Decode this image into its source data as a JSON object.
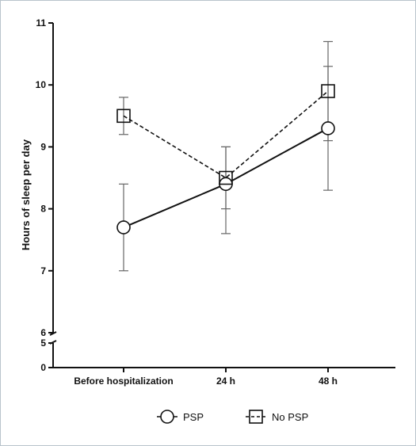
{
  "chart_data": {
    "type": "line",
    "ylabel": "Hours of sleep per day",
    "categories": [
      "Before hospitalization",
      "24 h",
      "48 h"
    ],
    "y_ticks_upper": [
      6,
      7,
      8,
      9,
      10,
      11
    ],
    "y_ticks_lower": [
      0,
      5
    ],
    "y_axis_break": [
      5,
      6
    ],
    "ylim": [
      0,
      11
    ],
    "grid": false,
    "legend_position": "bottom",
    "series": [
      {
        "name": "PSP",
        "marker": "circle",
        "line_style": "solid",
        "values": [
          7.7,
          8.4,
          9.3
        ],
        "error_low": [
          7.0,
          7.6,
          8.3
        ],
        "error_high": [
          8.4,
          9.0,
          10.3
        ]
      },
      {
        "name": "No PSP",
        "marker": "square",
        "line_style": "dashed",
        "values": [
          9.5,
          8.5,
          9.9
        ],
        "error_low": [
          9.2,
          8.0,
          9.1
        ],
        "error_high": [
          9.8,
          9.0,
          10.7
        ]
      }
    ]
  }
}
